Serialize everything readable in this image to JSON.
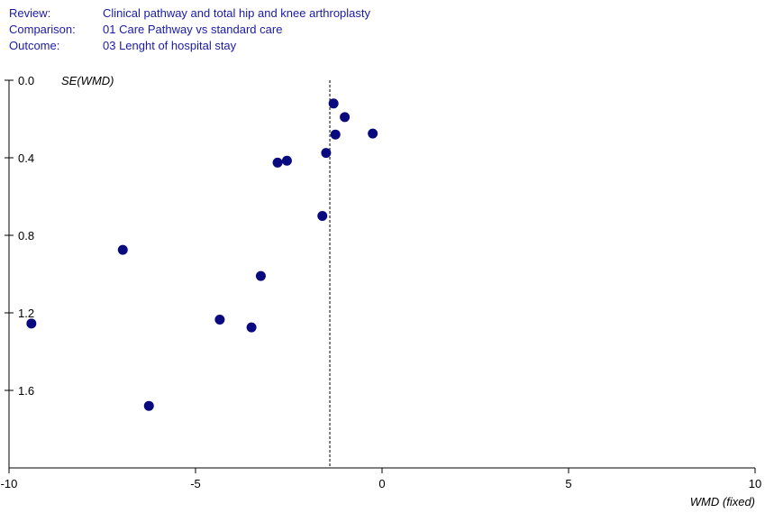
{
  "header": {
    "review_label": "Review:",
    "review_value": "Clinical pathway and total hip and knee arthroplasty",
    "comparison_label": "Comparison:",
    "comparison_value": "01 Care Pathway vs standard care",
    "outcome_label": "Outcome:",
    "outcome_value": "03 Lenght of hospital stay"
  },
  "chart_data": {
    "type": "scatter",
    "title": "",
    "xlabel": "WMD (fixed)",
    "ylabel": "SE(WMD)",
    "xlim": [
      -10,
      10
    ],
    "ylim": [
      0,
      2.0
    ],
    "y_inverted": true,
    "x_ticks": [
      -10,
      -5,
      0,
      5,
      10
    ],
    "x_tick_labels": [
      "-10",
      "-5",
      "0",
      "5",
      "10"
    ],
    "y_ticks": [
      0.0,
      0.4,
      0.8,
      1.2,
      1.6
    ],
    "y_tick_labels": [
      "0.0",
      "0.4",
      "0.8",
      "1.2",
      "1.6"
    ],
    "reference_line_x": -1.4,
    "grid": false,
    "marker_color": "#0a0a80",
    "points": [
      {
        "x": -1.3,
        "y": 0.12
      },
      {
        "x": -1.0,
        "y": 0.19
      },
      {
        "x": -1.25,
        "y": 0.28
      },
      {
        "x": -0.25,
        "y": 0.275
      },
      {
        "x": -1.5,
        "y": 0.375
      },
      {
        "x": -2.55,
        "y": 0.415
      },
      {
        "x": -2.8,
        "y": 0.425
      },
      {
        "x": -1.6,
        "y": 0.7
      },
      {
        "x": -6.95,
        "y": 0.875
      },
      {
        "x": -3.25,
        "y": 1.01
      },
      {
        "x": -9.4,
        "y": 1.255
      },
      {
        "x": -4.35,
        "y": 1.235
      },
      {
        "x": -3.5,
        "y": 1.275
      },
      {
        "x": -6.25,
        "y": 1.68
      }
    ]
  }
}
